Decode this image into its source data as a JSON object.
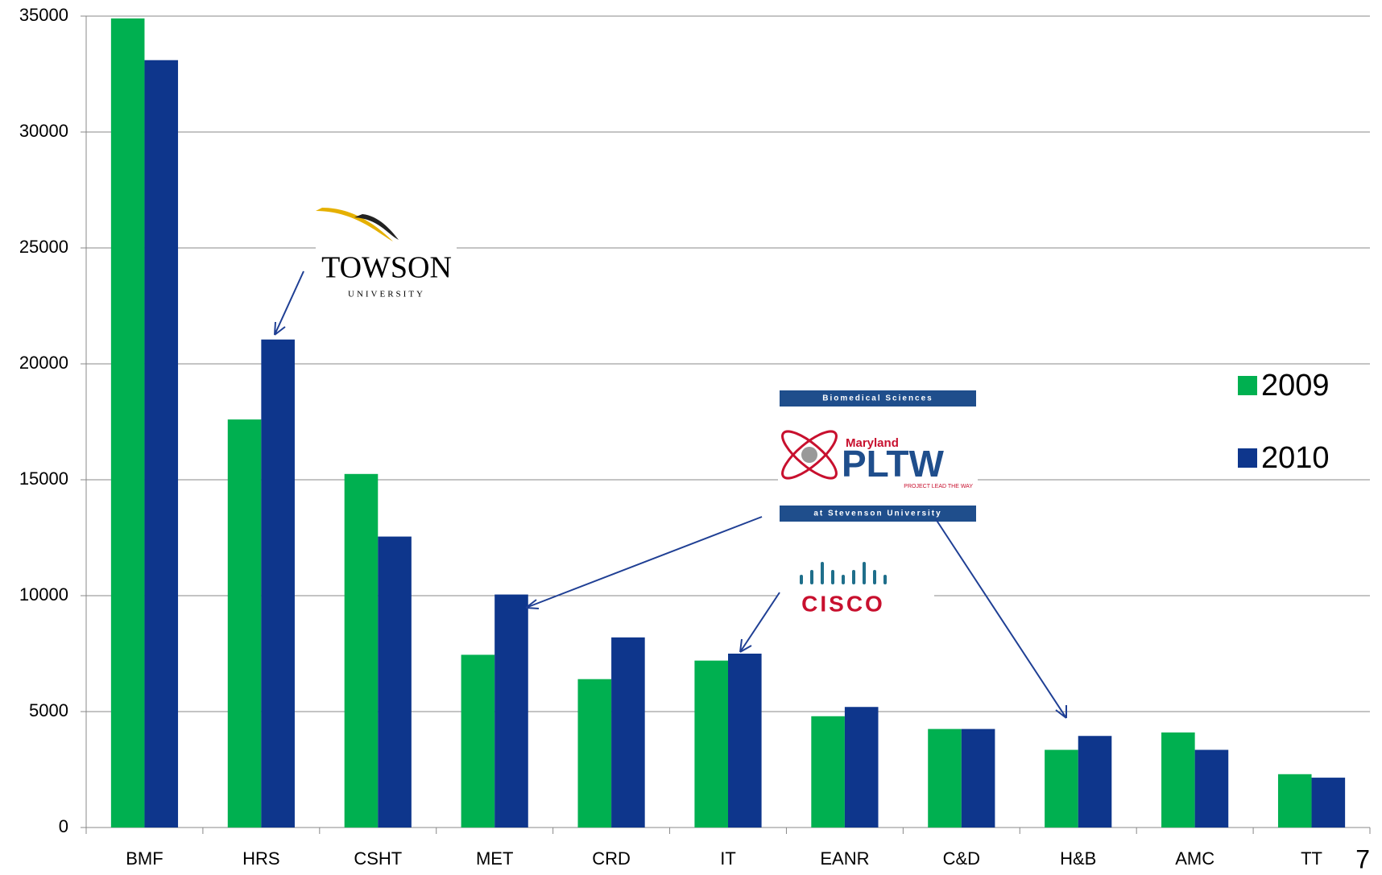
{
  "chart_data": {
    "type": "bar",
    "categories": [
      "BMF",
      "HRS",
      "CSHT",
      "MET",
      "CRD",
      "IT",
      "EANR",
      "C&D",
      "H&B",
      "AMC",
      "TT"
    ],
    "series": [
      {
        "name": "2009",
        "color": "#00b050",
        "values": [
          34900,
          17600,
          15250,
          7450,
          6400,
          7200,
          4800,
          4250,
          3350,
          4100,
          2300
        ]
      },
      {
        "name": "2010",
        "color": "#0e368c",
        "values": [
          33100,
          21050,
          12550,
          10050,
          8200,
          7500,
          5200,
          4250,
          3950,
          3350,
          2150
        ]
      }
    ],
    "ylim": [
      0,
      35000
    ],
    "yticks": [
      0,
      5000,
      10000,
      15000,
      20000,
      25000,
      30000,
      35000
    ],
    "grid": true,
    "legend": "right"
  },
  "logos": {
    "towson": {
      "name": "TOWSON",
      "sub": "UNIVERSITY"
    },
    "pltw": {
      "top": "Biomedical Sciences",
      "state": "Maryland",
      "name": "PLTW",
      "tagline": "PROJECT LEAD THE WAY",
      "bottom": "at Stevenson University"
    },
    "cisco": {
      "name": "CISCO"
    }
  },
  "slide_number": "7"
}
